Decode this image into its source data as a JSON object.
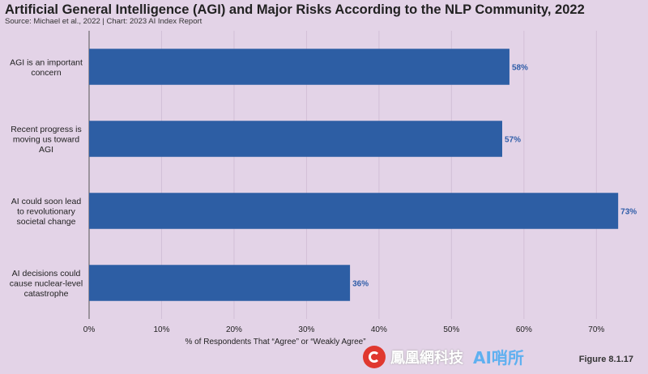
{
  "chart_data": {
    "type": "bar",
    "orientation": "horizontal",
    "title": "Artificial General Intelligence (AGI) and Major Risks According to the NLP Community, 2022",
    "subtitle": "Source: Michael et al., 2022 | Chart: 2023 AI Index Report",
    "categories": [
      [
        "AGI is an important",
        "concern"
      ],
      [
        "Recent progress is",
        "moving us toward",
        "AGI"
      ],
      [
        "AI could soon lead",
        "to revolutionary",
        "societal change"
      ],
      [
        "AI decisions could",
        "cause nuclear-level",
        "catastrophe"
      ]
    ],
    "values": [
      58,
      57,
      73,
      36
    ],
    "value_labels": [
      "58%",
      "57%",
      "73%",
      "36%"
    ],
    "xlabel": "% of Respondents That “Agree” or “Weakly Agree”",
    "ylabel": "",
    "xlim": [
      0,
      76
    ],
    "xticks": [
      0,
      10,
      20,
      30,
      40,
      50,
      60,
      70
    ],
    "xtick_labels": [
      "0%",
      "10%",
      "20%",
      "30%",
      "40%",
      "50%",
      "60%",
      "70%"
    ],
    "grid": true,
    "bar_color": "#2d5ea4"
  },
  "watermark": {
    "logo": "phoenix-logo-icon",
    "text": "鳳凰網科技",
    "ai_text": "AI哨所"
  },
  "figure_label": "Figure 8.1.17"
}
